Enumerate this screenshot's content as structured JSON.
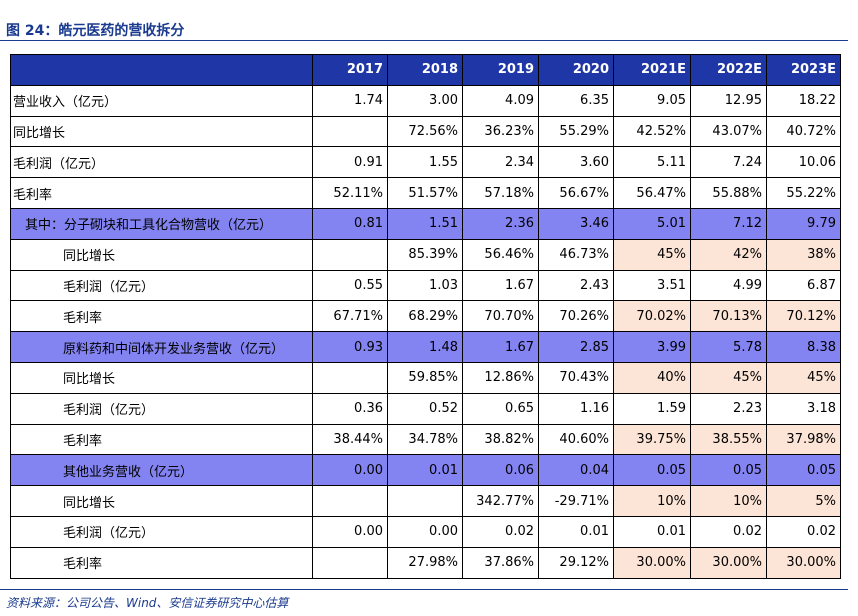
{
  "header": {
    "title": "图 24：皓元医药的营收拆分"
  },
  "table": {
    "columns": [
      "2017",
      "2018",
      "2019",
      "2020",
      "2021E",
      "2022E",
      "2023E"
    ],
    "rows": [
      {
        "label": "营业收入（亿元）",
        "values": [
          "1.74",
          "3.00",
          "4.09",
          "6.35",
          "9.05",
          "12.95",
          "18.22"
        ]
      },
      {
        "label": "同比增长",
        "values": [
          null,
          "72.56%",
          "36.23%",
          "55.29%",
          "42.52%",
          "43.07%",
          "40.72%"
        ]
      },
      {
        "label": "毛利润（亿元）",
        "values": [
          "0.91",
          "1.55",
          "2.34",
          "3.60",
          "5.11",
          "7.24",
          "10.06"
        ]
      },
      {
        "label": "毛利率",
        "values": [
          "52.11%",
          "51.57%",
          "57.18%",
          "56.67%",
          "56.47%",
          "55.88%",
          "55.22%"
        ]
      },
      {
        "label": "其中：分子砌块和工具化合物营收（亿元）",
        "values": [
          "0.81",
          "1.51",
          "2.36",
          "3.46",
          "5.01",
          "7.12",
          "9.79"
        ]
      },
      {
        "label": "同比增长",
        "values": [
          null,
          "85.39%",
          "56.46%",
          "46.73%",
          "45%",
          "42%",
          "38%"
        ]
      },
      {
        "label": "毛利润（亿元）",
        "values": [
          "0.55",
          "1.03",
          "1.67",
          "2.43",
          "3.51",
          "4.99",
          "6.87"
        ]
      },
      {
        "label": "毛利率",
        "values": [
          "67.71%",
          "68.29%",
          "70.70%",
          "70.26%",
          "70.02%",
          "70.13%",
          "70.12%"
        ]
      },
      {
        "label": "原料药和中间体开发业务营收（亿元）",
        "values": [
          "0.93",
          "1.48",
          "1.67",
          "2.85",
          "3.99",
          "5.78",
          "8.38"
        ]
      },
      {
        "label": "同比增长",
        "values": [
          null,
          "59.85%",
          "12.86%",
          "70.43%",
          "40%",
          "45%",
          "45%"
        ]
      },
      {
        "label": "毛利润（亿元）",
        "values": [
          "0.36",
          "0.52",
          "0.65",
          "1.16",
          "1.59",
          "2.23",
          "3.18"
        ]
      },
      {
        "label": "毛利率",
        "values": [
          "38.44%",
          "34.78%",
          "38.82%",
          "40.60%",
          "39.75%",
          "38.55%",
          "37.98%"
        ]
      },
      {
        "label": "其他业务营收（亿元）",
        "values": [
          "0.00",
          "0.01",
          "0.06",
          "0.04",
          "0.05",
          "0.05",
          "0.05"
        ]
      },
      {
        "label": "同比增长",
        "values": [
          null,
          null,
          "342.77%",
          "-29.71%",
          "10%",
          "10%",
          "5%"
        ]
      },
      {
        "label": "毛利润（亿元）",
        "values": [
          "0.00",
          "0.00",
          "0.02",
          "0.01",
          "0.01",
          "0.02",
          "0.02"
        ]
      },
      {
        "label": "毛利率",
        "values": [
          null,
          "27.98%",
          "37.86%",
          "29.12%",
          "30.00%",
          "30.00%",
          "30.00%"
        ]
      }
    ]
  },
  "footer": {
    "source": "资料来源：公司公告、Wind、安信证券研究中心估算"
  }
}
